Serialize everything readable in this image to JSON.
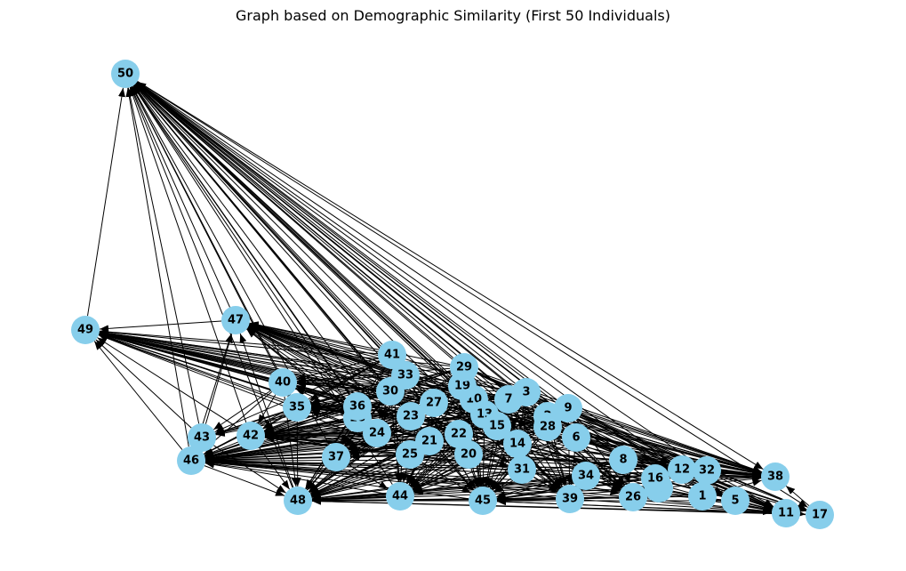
{
  "title": "Graph based on Demographic Similarity (First 50 Individuals)",
  "colors": {
    "node_fill": "#87ceeb",
    "edge": "#000000",
    "label": "#000000"
  },
  "nodes": [
    "1",
    "2",
    "3",
    "4",
    "5",
    "6",
    "7",
    "8",
    "9",
    "10",
    "11",
    "12",
    "13",
    "14",
    "15",
    "16",
    "17",
    "18",
    "19",
    "20",
    "21",
    "22",
    "23",
    "24",
    "25",
    "26",
    "27",
    "28",
    "29",
    "30",
    "31",
    "32",
    "33",
    "34",
    "35",
    "36",
    "37",
    "38",
    "39",
    "40",
    "41",
    "42",
    "43",
    "44",
    "45",
    "46",
    "47",
    "48",
    "49",
    "50"
  ],
  "edges": [
    [
      "49",
      "50"
    ],
    [
      "47",
      "50"
    ],
    [
      "43",
      "50"
    ],
    [
      "46",
      "50"
    ],
    [
      "42",
      "50"
    ],
    [
      "35",
      "50"
    ],
    [
      "40",
      "50"
    ],
    [
      "41",
      "50"
    ],
    [
      "33",
      "50"
    ],
    [
      "30",
      "50"
    ],
    [
      "36",
      "50"
    ],
    [
      "18",
      "50"
    ],
    [
      "24",
      "50"
    ],
    [
      "23",
      "50"
    ],
    [
      "27",
      "50"
    ],
    [
      "29",
      "50"
    ],
    [
      "19",
      "50"
    ],
    [
      "10",
      "50"
    ],
    [
      "7",
      "50"
    ],
    [
      "3",
      "50"
    ],
    [
      "13",
      "50"
    ],
    [
      "15",
      "50"
    ],
    [
      "2",
      "50"
    ],
    [
      "9",
      "50"
    ],
    [
      "28",
      "50"
    ],
    [
      "6",
      "50"
    ],
    [
      "14",
      "50"
    ],
    [
      "22",
      "50"
    ],
    [
      "21",
      "50"
    ],
    [
      "25",
      "50"
    ],
    [
      "20",
      "50"
    ],
    [
      "31",
      "50"
    ],
    [
      "34",
      "50"
    ],
    [
      "8",
      "50"
    ],
    [
      "12",
      "50"
    ],
    [
      "32",
      "50"
    ],
    [
      "16",
      "50"
    ],
    [
      "4",
      "50"
    ],
    [
      "1",
      "50"
    ],
    [
      "26",
      "50"
    ],
    [
      "39",
      "50"
    ],
    [
      "45",
      "50"
    ],
    [
      "44",
      "50"
    ],
    [
      "37",
      "50"
    ],
    [
      "48",
      "50"
    ],
    [
      "50",
      "38"
    ],
    [
      "50",
      "17"
    ],
    [
      "47",
      "49"
    ],
    [
      "41",
      "49"
    ],
    [
      "33",
      "49"
    ],
    [
      "30",
      "49"
    ],
    [
      "36",
      "49"
    ],
    [
      "18",
      "49"
    ],
    [
      "24",
      "49"
    ],
    [
      "23",
      "49"
    ],
    [
      "27",
      "49"
    ],
    [
      "29",
      "49"
    ],
    [
      "19",
      "49"
    ],
    [
      "10",
      "49"
    ],
    [
      "7",
      "49"
    ],
    [
      "3",
      "49"
    ],
    [
      "13",
      "49"
    ],
    [
      "15",
      "49"
    ],
    [
      "9",
      "49"
    ],
    [
      "2",
      "49"
    ],
    [
      "28",
      "49"
    ],
    [
      "6",
      "49"
    ],
    [
      "14",
      "49"
    ],
    [
      "22",
      "49"
    ],
    [
      "21",
      "49"
    ],
    [
      "25",
      "49"
    ],
    [
      "20",
      "49"
    ],
    [
      "31",
      "49"
    ],
    [
      "8",
      "49"
    ],
    [
      "12",
      "49"
    ],
    [
      "32",
      "49"
    ],
    [
      "1",
      "49"
    ],
    [
      "4",
      "49"
    ],
    [
      "11",
      "49"
    ],
    [
      "38",
      "49"
    ],
    [
      "41",
      "47"
    ],
    [
      "33",
      "47"
    ],
    [
      "30",
      "47"
    ],
    [
      "36",
      "47"
    ],
    [
      "18",
      "47"
    ],
    [
      "24",
      "47"
    ],
    [
      "23",
      "47"
    ],
    [
      "27",
      "47"
    ],
    [
      "29",
      "47"
    ],
    [
      "19",
      "47"
    ],
    [
      "10",
      "47"
    ],
    [
      "7",
      "47"
    ],
    [
      "3",
      "47"
    ],
    [
      "13",
      "47"
    ],
    [
      "15",
      "47"
    ],
    [
      "9",
      "47"
    ],
    [
      "2",
      "47"
    ],
    [
      "28",
      "47"
    ],
    [
      "6",
      "47"
    ],
    [
      "14",
      "47"
    ],
    [
      "22",
      "47"
    ],
    [
      "21",
      "47"
    ],
    [
      "25",
      "47"
    ],
    [
      "20",
      "47"
    ],
    [
      "31",
      "47"
    ],
    [
      "8",
      "47"
    ],
    [
      "12",
      "47"
    ],
    [
      "32",
      "47"
    ],
    [
      "38",
      "47"
    ],
    [
      "43",
      "47"
    ],
    [
      "46",
      "47"
    ],
    [
      "48",
      "47"
    ],
    [
      "43",
      "49"
    ],
    [
      "46",
      "49"
    ],
    [
      "42",
      "49"
    ],
    [
      "40",
      "49"
    ],
    [
      "35",
      "49"
    ],
    [
      "40",
      "46"
    ],
    [
      "35",
      "46"
    ],
    [
      "41",
      "46"
    ],
    [
      "33",
      "46"
    ],
    [
      "30",
      "46"
    ],
    [
      "36",
      "46"
    ],
    [
      "18",
      "46"
    ],
    [
      "24",
      "46"
    ],
    [
      "23",
      "46"
    ],
    [
      "27",
      "46"
    ],
    [
      "29",
      "46"
    ],
    [
      "19",
      "46"
    ],
    [
      "10",
      "46"
    ],
    [
      "7",
      "46"
    ],
    [
      "3",
      "46"
    ],
    [
      "13",
      "46"
    ],
    [
      "15",
      "46"
    ],
    [
      "2",
      "46"
    ],
    [
      "9",
      "46"
    ],
    [
      "28",
      "46"
    ],
    [
      "6",
      "46"
    ],
    [
      "14",
      "46"
    ],
    [
      "22",
      "46"
    ],
    [
      "21",
      "46"
    ],
    [
      "25",
      "46"
    ],
    [
      "20",
      "46"
    ],
    [
      "31",
      "46"
    ],
    [
      "34",
      "46"
    ],
    [
      "8",
      "46"
    ],
    [
      "12",
      "46"
    ],
    [
      "32",
      "46"
    ],
    [
      "16",
      "46"
    ],
    [
      "4",
      "46"
    ],
    [
      "1",
      "46"
    ],
    [
      "26",
      "46"
    ],
    [
      "39",
      "46"
    ],
    [
      "45",
      "46"
    ],
    [
      "44",
      "46"
    ],
    [
      "37",
      "46"
    ],
    [
      "5",
      "46"
    ],
    [
      "11",
      "46"
    ],
    [
      "38",
      "46"
    ],
    [
      "40",
      "42"
    ],
    [
      "35",
      "42"
    ],
    [
      "41",
      "42"
    ],
    [
      "33",
      "42"
    ],
    [
      "30",
      "42"
    ],
    [
      "36",
      "42"
    ],
    [
      "18",
      "42"
    ],
    [
      "24",
      "42"
    ],
    [
      "23",
      "42"
    ],
    [
      "27",
      "42"
    ],
    [
      "29",
      "42"
    ],
    [
      "19",
      "42"
    ],
    [
      "10",
      "42"
    ],
    [
      "7",
      "42"
    ],
    [
      "3",
      "42"
    ],
    [
      "13",
      "42"
    ],
    [
      "15",
      "42"
    ],
    [
      "2",
      "42"
    ],
    [
      "9",
      "42"
    ],
    [
      "28",
      "42"
    ],
    [
      "6",
      "42"
    ],
    [
      "14",
      "42"
    ],
    [
      "22",
      "42"
    ],
    [
      "21",
      "42"
    ],
    [
      "25",
      "42"
    ],
    [
      "20",
      "42"
    ],
    [
      "31",
      "42"
    ],
    [
      "34",
      "42"
    ],
    [
      "8",
      "42"
    ],
    [
      "12",
      "42"
    ],
    [
      "32",
      "42"
    ],
    [
      "1",
      "42"
    ],
    [
      "38",
      "42"
    ],
    [
      "40",
      "43"
    ],
    [
      "35",
      "43"
    ],
    [
      "41",
      "43"
    ],
    [
      "33",
      "43"
    ],
    [
      "30",
      "43"
    ],
    [
      "29",
      "43"
    ],
    [
      "19",
      "43"
    ],
    [
      "40",
      "48"
    ],
    [
      "35",
      "48"
    ],
    [
      "43",
      "48"
    ],
    [
      "46",
      "48"
    ],
    [
      "42",
      "48"
    ],
    [
      "41",
      "48"
    ],
    [
      "33",
      "48"
    ],
    [
      "30",
      "48"
    ],
    [
      "36",
      "48"
    ],
    [
      "18",
      "48"
    ],
    [
      "24",
      "48"
    ],
    [
      "23",
      "48"
    ],
    [
      "27",
      "48"
    ],
    [
      "29",
      "48"
    ],
    [
      "19",
      "48"
    ],
    [
      "10",
      "48"
    ],
    [
      "7",
      "48"
    ],
    [
      "3",
      "48"
    ],
    [
      "13",
      "48"
    ],
    [
      "15",
      "48"
    ],
    [
      "2",
      "48"
    ],
    [
      "9",
      "48"
    ],
    [
      "28",
      "48"
    ],
    [
      "6",
      "48"
    ],
    [
      "14",
      "48"
    ],
    [
      "22",
      "48"
    ],
    [
      "21",
      "48"
    ],
    [
      "25",
      "48"
    ],
    [
      "20",
      "48"
    ],
    [
      "31",
      "48"
    ],
    [
      "34",
      "48"
    ],
    [
      "8",
      "48"
    ],
    [
      "12",
      "48"
    ],
    [
      "32",
      "48"
    ],
    [
      "16",
      "48"
    ],
    [
      "4",
      "48"
    ],
    [
      "1",
      "48"
    ],
    [
      "26",
      "48"
    ],
    [
      "39",
      "48"
    ],
    [
      "45",
      "48"
    ],
    [
      "44",
      "48"
    ],
    [
      "37",
      "48"
    ],
    [
      "5",
      "48"
    ],
    [
      "11",
      "48"
    ],
    [
      "17",
      "48"
    ],
    [
      "38",
      "48"
    ],
    [
      "41",
      "44"
    ],
    [
      "33",
      "44"
    ],
    [
      "30",
      "44"
    ],
    [
      "29",
      "44"
    ],
    [
      "19",
      "44"
    ],
    [
      "10",
      "44"
    ],
    [
      "7",
      "44"
    ],
    [
      "3",
      "44"
    ],
    [
      "9",
      "44"
    ],
    [
      "2",
      "44"
    ],
    [
      "13",
      "44"
    ],
    [
      "15",
      "44"
    ],
    [
      "28",
      "44"
    ],
    [
      "6",
      "44"
    ],
    [
      "14",
      "44"
    ],
    [
      "22",
      "44"
    ],
    [
      "21",
      "44"
    ],
    [
      "25",
      "44"
    ],
    [
      "20",
      "44"
    ],
    [
      "31",
      "44"
    ],
    [
      "37",
      "44"
    ],
    [
      "41",
      "45"
    ],
    [
      "33",
      "45"
    ],
    [
      "30",
      "45"
    ],
    [
      "29",
      "45"
    ],
    [
      "19",
      "45"
    ],
    [
      "10",
      "45"
    ],
    [
      "7",
      "45"
    ],
    [
      "3",
      "45"
    ],
    [
      "9",
      "45"
    ],
    [
      "2",
      "45"
    ],
    [
      "13",
      "45"
    ],
    [
      "15",
      "45"
    ],
    [
      "28",
      "45"
    ],
    [
      "6",
      "45"
    ],
    [
      "14",
      "45"
    ],
    [
      "22",
      "45"
    ],
    [
      "21",
      "45"
    ],
    [
      "25",
      "45"
    ],
    [
      "20",
      "45"
    ],
    [
      "31",
      "45"
    ],
    [
      "34",
      "45"
    ],
    [
      "8",
      "45"
    ],
    [
      "12",
      "45"
    ],
    [
      "32",
      "45"
    ],
    [
      "16",
      "45"
    ],
    [
      "4",
      "45"
    ],
    [
      "1",
      "45"
    ],
    [
      "26",
      "45"
    ],
    [
      "39",
      "45"
    ],
    [
      "5",
      "45"
    ],
    [
      "11",
      "45"
    ],
    [
      "17",
      "45"
    ],
    [
      "41",
      "39"
    ],
    [
      "33",
      "39"
    ],
    [
      "30",
      "39"
    ],
    [
      "29",
      "39"
    ],
    [
      "19",
      "39"
    ],
    [
      "10",
      "39"
    ],
    [
      "7",
      "39"
    ],
    [
      "3",
      "39"
    ],
    [
      "9",
      "39"
    ],
    [
      "2",
      "39"
    ],
    [
      "13",
      "39"
    ],
    [
      "15",
      "39"
    ],
    [
      "28",
      "39"
    ],
    [
      "6",
      "39"
    ],
    [
      "14",
      "39"
    ],
    [
      "31",
      "39"
    ],
    [
      "34",
      "39"
    ],
    [
      "8",
      "39"
    ],
    [
      "41",
      "26"
    ],
    [
      "29",
      "26"
    ],
    [
      "19",
      "26"
    ],
    [
      "7",
      "26"
    ],
    [
      "3",
      "26"
    ],
    [
      "9",
      "26"
    ],
    [
      "2",
      "26"
    ],
    [
      "28",
      "26"
    ],
    [
      "6",
      "26"
    ],
    [
      "14",
      "26"
    ],
    [
      "31",
      "26"
    ],
    [
      "34",
      "26"
    ],
    [
      "8",
      "26"
    ],
    [
      "41",
      "38"
    ],
    [
      "33",
      "38"
    ],
    [
      "30",
      "38"
    ],
    [
      "29",
      "38"
    ],
    [
      "19",
      "38"
    ],
    [
      "10",
      "38"
    ],
    [
      "7",
      "38"
    ],
    [
      "3",
      "38"
    ],
    [
      "9",
      "38"
    ],
    [
      "2",
      "38"
    ],
    [
      "13",
      "38"
    ],
    [
      "15",
      "38"
    ],
    [
      "28",
      "38"
    ],
    [
      "6",
      "38"
    ],
    [
      "14",
      "38"
    ],
    [
      "22",
      "38"
    ],
    [
      "21",
      "38"
    ],
    [
      "25",
      "38"
    ],
    [
      "20",
      "38"
    ],
    [
      "31",
      "38"
    ],
    [
      "34",
      "38"
    ],
    [
      "8",
      "38"
    ],
    [
      "12",
      "38"
    ],
    [
      "32",
      "38"
    ],
    [
      "16",
      "38"
    ],
    [
      "4",
      "38"
    ],
    [
      "1",
      "38"
    ],
    [
      "17",
      "38"
    ],
    [
      "29",
      "11"
    ],
    [
      "19",
      "11"
    ],
    [
      "7",
      "11"
    ],
    [
      "3",
      "11"
    ],
    [
      "9",
      "11"
    ],
    [
      "2",
      "11"
    ],
    [
      "28",
      "11"
    ],
    [
      "6",
      "11"
    ],
    [
      "14",
      "11"
    ],
    [
      "31",
      "11"
    ],
    [
      "34",
      "11"
    ],
    [
      "8",
      "11"
    ],
    [
      "12",
      "11"
    ],
    [
      "32",
      "11"
    ],
    [
      "16",
      "11"
    ],
    [
      "4",
      "11"
    ],
    [
      "1",
      "11"
    ],
    [
      "5",
      "11"
    ],
    [
      "26",
      "11"
    ],
    [
      "39",
      "11"
    ],
    [
      "29",
      "5"
    ],
    [
      "9",
      "5"
    ],
    [
      "2",
      "5"
    ],
    [
      "28",
      "5"
    ],
    [
      "6",
      "5"
    ],
    [
      "8",
      "5"
    ],
    [
      "29",
      "17"
    ],
    [
      "9",
      "17"
    ],
    [
      "6",
      "17"
    ],
    [
      "8",
      "17"
    ],
    [
      "12",
      "17"
    ],
    [
      "32",
      "17"
    ],
    [
      "11",
      "17"
    ],
    [
      "29",
      "32"
    ],
    [
      "9",
      "32"
    ],
    [
      "6",
      "32"
    ],
    [
      "8",
      "32"
    ],
    [
      "29",
      "12"
    ],
    [
      "9",
      "12"
    ],
    [
      "6",
      "12"
    ],
    [
      "8",
      "12"
    ],
    [
      "7",
      "14"
    ],
    [
      "3",
      "14"
    ],
    [
      "10",
      "14"
    ],
    [
      "19",
      "14"
    ],
    [
      "29",
      "14"
    ],
    [
      "13",
      "14"
    ],
    [
      "15",
      "14"
    ],
    [
      "7",
      "31"
    ],
    [
      "3",
      "31"
    ],
    [
      "14",
      "31"
    ],
    [
      "15",
      "31"
    ],
    [
      "13",
      "31"
    ],
    [
      "22",
      "31"
    ],
    [
      "20",
      "31"
    ],
    [
      "41",
      "24"
    ],
    [
      "33",
      "24"
    ],
    [
      "30",
      "24"
    ],
    [
      "36",
      "24"
    ],
    [
      "18",
      "24"
    ],
    [
      "41",
      "37"
    ],
    [
      "33",
      "37"
    ],
    [
      "30",
      "37"
    ],
    [
      "36",
      "37"
    ],
    [
      "18",
      "37"
    ],
    [
      "24",
      "37"
    ],
    [
      "23",
      "37"
    ],
    [
      "27",
      "37"
    ],
    [
      "29",
      "37"
    ],
    [
      "19",
      "37"
    ],
    [
      "10",
      "37"
    ],
    [
      "7",
      "37"
    ],
    [
      "3",
      "37"
    ],
    [
      "13",
      "37"
    ],
    [
      "15",
      "37"
    ],
    [
      "2",
      "37"
    ],
    [
      "9",
      "37"
    ],
    [
      "22",
      "37"
    ],
    [
      "21",
      "37"
    ],
    [
      "25",
      "37"
    ],
    [
      "20",
      "37"
    ],
    [
      "41",
      "35"
    ],
    [
      "33",
      "35"
    ],
    [
      "30",
      "35"
    ],
    [
      "36",
      "35"
    ],
    [
      "18",
      "35"
    ],
    [
      "24",
      "35"
    ],
    [
      "23",
      "35"
    ],
    [
      "27",
      "35"
    ],
    [
      "29",
      "35"
    ],
    [
      "19",
      "35"
    ],
    [
      "10",
      "35"
    ],
    [
      "7",
      "35"
    ],
    [
      "3",
      "35"
    ],
    [
      "13",
      "35"
    ],
    [
      "15",
      "35"
    ],
    [
      "9",
      "35"
    ],
    [
      "2",
      "35"
    ],
    [
      "28",
      "35"
    ],
    [
      "6",
      "35"
    ],
    [
      "41",
      "40"
    ],
    [
      "33",
      "40"
    ],
    [
      "30",
      "40"
    ],
    [
      "36",
      "40"
    ],
    [
      "18",
      "40"
    ],
    [
      "29",
      "40"
    ],
    [
      "19",
      "40"
    ],
    [
      "10",
      "40"
    ],
    [
      "7",
      "40"
    ],
    [
      "3",
      "40"
    ]
  ]
}
